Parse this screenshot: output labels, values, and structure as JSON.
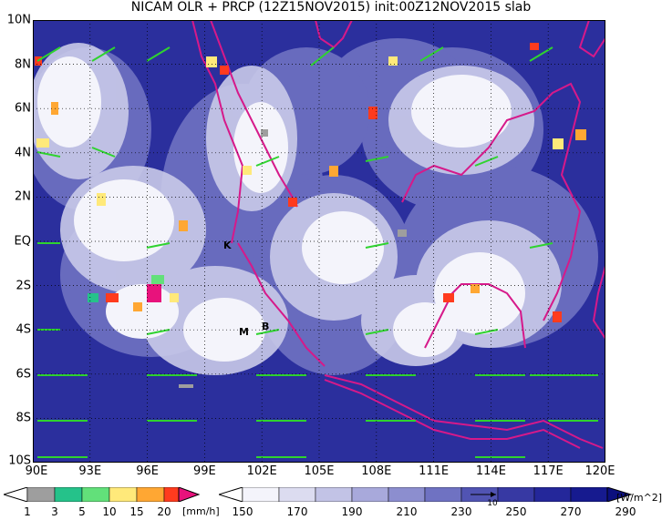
{
  "title": "NICAM OLR + PRCP (12Z15NOV2015) init:00Z12NOV2015 slab",
  "y_ticks": [
    "10N",
    "8N",
    "6N",
    "4N",
    "2N",
    "EQ",
    "2S",
    "4S",
    "6S",
    "8S",
    "10S"
  ],
  "x_ticks": [
    "90E",
    "93E",
    "96E",
    "99E",
    "102E",
    "105E",
    "108E",
    "111E",
    "114E",
    "117E",
    "120E"
  ],
  "markers": {
    "k": "K",
    "m": "M",
    "b": "B"
  },
  "prcp_colorbar": {
    "labels": [
      "1",
      "3",
      "5",
      "10",
      "15",
      "20"
    ],
    "unit": "[mm/h]",
    "colors": [
      "#9e9e9e",
      "#25c28a",
      "#62e07a",
      "#ffe97a",
      "#ffa733",
      "#ff3b1e",
      "#e8127c"
    ]
  },
  "olr_colorbar": {
    "labels": [
      "150",
      "170",
      "190",
      "210",
      "230",
      "250",
      "270",
      "290"
    ],
    "unit": "[W/m^2]",
    "vector_ref": "10",
    "colors": [
      "#f4f4fb",
      "#dcdcf0",
      "#c2c3e6",
      "#a8a9db",
      "#8c8ecf",
      "#6f72c2",
      "#5154b3",
      "#3739a3",
      "#24279a",
      "#161a8f"
    ]
  },
  "map_colors": {
    "sea": "#2b2f9d",
    "coast": "#d6198a",
    "vector": "#2fd32f",
    "grid": "#000000"
  }
}
